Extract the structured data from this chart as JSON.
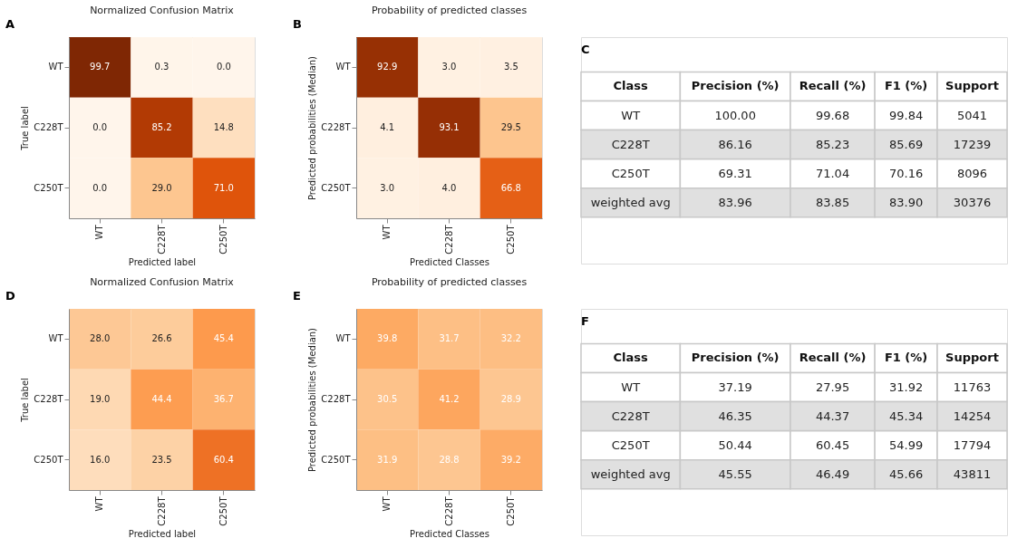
{
  "chart_data": [
    {
      "type": "heatmap",
      "title": "Normalized Confusion Matrix",
      "xlabel": "Predicted label",
      "ylabel": "True label",
      "annotations": [
        "A"
      ],
      "categories": [
        "WT",
        "C228T",
        "C250T"
      ],
      "y_categories": [
        "WT",
        "C228T",
        "C250T"
      ],
      "cells": [
        [
          99.7,
          0.3,
          0.0
        ],
        [
          0.0,
          85.2,
          14.8
        ],
        [
          0.0,
          29.0,
          71.0
        ]
      ],
      "cell_labels": [
        [
          "99.7",
          "0.3",
          "0.0"
        ],
        [
          "0.0",
          "85.2",
          "14.8"
        ],
        [
          "0.0",
          "29.0",
          "71.0"
        ]
      ]
    },
    {
      "type": "heatmap",
      "title": "Probability of predicted classes",
      "xlabel": "Predicted Classes",
      "ylabel": "Predicted probabilities (Median)",
      "annotations": [
        "B"
      ],
      "categories": [
        "WT",
        "C228T",
        "C250T"
      ],
      "y_categories": [
        "WT",
        "C228T",
        "C250T"
      ],
      "cells": [
        [
          92.9,
          3.0,
          3.5
        ],
        [
          4.1,
          93.1,
          29.5
        ],
        [
          3.0,
          4.0,
          66.8
        ]
      ],
      "cell_labels": [
        [
          "92.9",
          "3.0",
          "3.5"
        ],
        [
          "4.1",
          "93.1",
          "29.5"
        ],
        [
          "3.0",
          "4.0",
          "66.8"
        ]
      ]
    },
    {
      "type": "other",
      "annotations": [
        "C"
      ],
      "categories": [
        "Class",
        "Precision (%)",
        "Recall (%)",
        "F1 (%)",
        "Support"
      ],
      "cell_labels": [
        [
          "WT",
          "100.00",
          "99.68",
          "99.84",
          "5041"
        ],
        [
          "C228T",
          "86.16",
          "85.23",
          "85.69",
          "17239"
        ],
        [
          "C250T",
          "69.31",
          "71.04",
          "70.16",
          "8096"
        ],
        [
          "weighted avg",
          "83.96",
          "83.85",
          "83.90",
          "30376"
        ]
      ]
    },
    {
      "type": "heatmap",
      "title": "Normalized Confusion Matrix",
      "xlabel": "Predicted label",
      "ylabel": "True label",
      "annotations": [
        "D"
      ],
      "categories": [
        "WT",
        "C228T",
        "C250T"
      ],
      "y_categories": [
        "WT",
        "C228T",
        "C250T"
      ],
      "cells": [
        [
          28.0,
          26.6,
          45.4
        ],
        [
          19.0,
          44.4,
          36.7
        ],
        [
          16.0,
          23.5,
          60.4
        ]
      ],
      "cell_labels": [
        [
          "28.0",
          "26.6",
          "45.4"
        ],
        [
          "19.0",
          "44.4",
          "36.7"
        ],
        [
          "16.0",
          "23.5",
          "60.4"
        ]
      ]
    },
    {
      "type": "heatmap",
      "title": "Probability of predicted classes",
      "xlabel": "Predicted Classes",
      "ylabel": "Predicted probabilities (Median)",
      "annotations": [
        "E"
      ],
      "categories": [
        "WT",
        "C228T",
        "C250T"
      ],
      "y_categories": [
        "WT",
        "C228T",
        "C250T"
      ],
      "cells": [
        [
          39.8,
          31.7,
          32.2
        ],
        [
          30.5,
          41.2,
          28.9
        ],
        [
          31.9,
          28.8,
          39.2
        ]
      ],
      "cell_labels": [
        [
          "39.8",
          "31.7",
          "32.2"
        ],
        [
          "30.5",
          "41.2",
          "28.9"
        ],
        [
          "31.9",
          "28.8",
          "39.2"
        ]
      ]
    },
    {
      "type": "other",
      "annotations": [
        "F"
      ],
      "categories": [
        "Class",
        "Precision (%)",
        "Recall (%)",
        "F1 (%)",
        "Support"
      ],
      "cell_labels": [
        [
          "WT",
          "37.19",
          "27.95",
          "31.92",
          "11763"
        ],
        [
          "C228T",
          "46.35",
          "44.37",
          "45.34",
          "14254"
        ],
        [
          "C250T",
          "50.44",
          "60.45",
          "54.99",
          "17794"
        ],
        [
          "weighted avg",
          "45.55",
          "46.49",
          "45.66",
          "43811"
        ]
      ]
    }
  ]
}
